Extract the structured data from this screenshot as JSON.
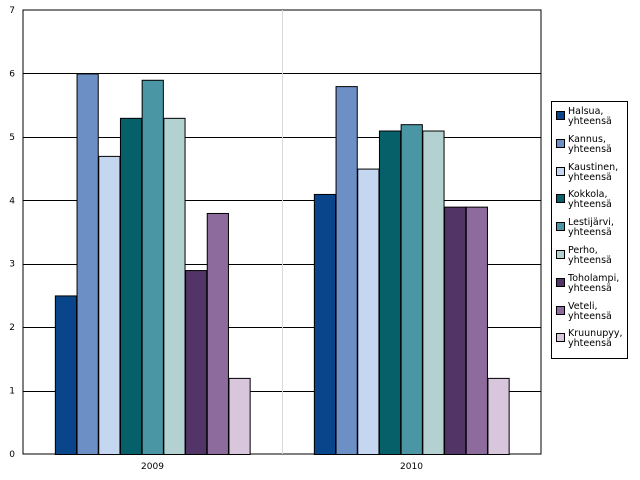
{
  "chart_data": {
    "type": "bar",
    "title": "",
    "xlabel": "",
    "ylabel": "",
    "categories": [
      "2009",
      "2010"
    ],
    "ylim": [
      0,
      7
    ],
    "yticks": [
      0,
      1,
      2,
      3,
      4,
      5,
      6,
      7
    ],
    "grid": "horizontal",
    "legend_position": "right",
    "series": [
      {
        "name": "Halsua,\nyhteensä",
        "color": "#08458a",
        "values": [
          2.5,
          4.1
        ]
      },
      {
        "name": "Kannus,\nyhteensä",
        "color": "#6c8fc6",
        "values": [
          6.0,
          5.8
        ]
      },
      {
        "name": "Kaustinen,\nyhteensä",
        "color": "#c5d6f0",
        "values": [
          4.7,
          4.5
        ]
      },
      {
        "name": "Kokkola,\nyhteensä",
        "color": "#05606a",
        "values": [
          5.3,
          5.1
        ]
      },
      {
        "name": "Lestijärvi,\nyhteensä",
        "color": "#4a96a5",
        "values": [
          5.9,
          5.2
        ]
      },
      {
        "name": "Perho,\nyhteensä",
        "color": "#b3d1d1",
        "values": [
          5.3,
          5.1
        ]
      },
      {
        "name": "Toholampi,\nyhteensä",
        "color": "#523466",
        "values": [
          2.9,
          3.9
        ]
      },
      {
        "name": "Veteli,\nyhteensä",
        "color": "#8d6b9c",
        "values": [
          3.8,
          3.9
        ]
      },
      {
        "name": "Kruunupyy,\nyhteensä",
        "color": "#d8c6dd",
        "values": [
          1.2,
          1.2
        ]
      }
    ]
  }
}
